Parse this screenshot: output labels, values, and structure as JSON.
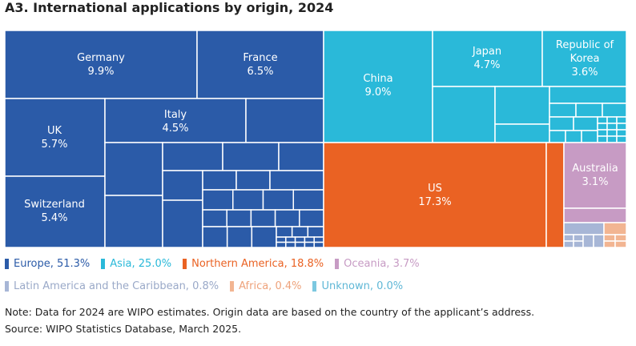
{
  "chart_data": {
    "type": "treemap",
    "title": "A3. International applications by origin, 2024",
    "unit": "% of total",
    "regions": [
      {
        "name": "Europe",
        "share": 51.3,
        "color": "#2b5ba8"
      },
      {
        "name": "Asia",
        "share": 25.0,
        "color": "#2ab9d9"
      },
      {
        "name": "Northern America",
        "share": 18.8,
        "color": "#ea6223"
      },
      {
        "name": "Oceania",
        "share": 3.7,
        "color": "#c79bc4"
      },
      {
        "name": "Latin America and the Caribbean",
        "share": 0.8,
        "color": "#a7b6d6"
      },
      {
        "name": "Africa",
        "share": 0.4,
        "color": "#f2b592"
      },
      {
        "name": "Unknown",
        "share": 0.0,
        "color": "#7cc8e0"
      }
    ],
    "labeled_origins": [
      {
        "name": "Germany",
        "value": "9.9%",
        "region": "Europe"
      },
      {
        "name": "France",
        "value": "6.5%",
        "region": "Europe"
      },
      {
        "name": "UK",
        "value": "5.7%",
        "region": "Europe"
      },
      {
        "name": "Italy",
        "value": "4.5%",
        "region": "Europe"
      },
      {
        "name": "Switzerland",
        "value": "5.4%",
        "region": "Europe"
      },
      {
        "name": "China",
        "value": "9.0%",
        "region": "Asia"
      },
      {
        "name": "Japan",
        "value": "4.7%",
        "region": "Asia"
      },
      {
        "name": "Republic of Korea",
        "value": "3.6%",
        "region": "Asia"
      },
      {
        "name": "US",
        "value": "17.3%",
        "region": "Northern America"
      },
      {
        "name": "Australia",
        "value": "3.1%",
        "region": "Oceania"
      }
    ]
  },
  "legend": {
    "row1": [
      "Europe, 51.3%",
      "Asia, 25.0%",
      "Northern America, 18.8%",
      "Oceania, 3.7%"
    ],
    "row2": [
      "Latin America and the Caribbean, 0.8%",
      "Africa, 0.4%",
      "Unknown, 0.0%"
    ],
    "row1_text_colors": [
      "#2b5ba8",
      "#2ab9d9",
      "#ea6223",
      "#c79bc4"
    ],
    "row2_text_colors": [
      "#9aa9c8",
      "#eea27b",
      "#5fb7d6"
    ]
  },
  "notes": {
    "note": "Note: Data for 2024 are WIPO estimates. Origin data are based on the country of the applicant’s address.",
    "source": "Source: WIPO Statistics Database, March 2025."
  }
}
